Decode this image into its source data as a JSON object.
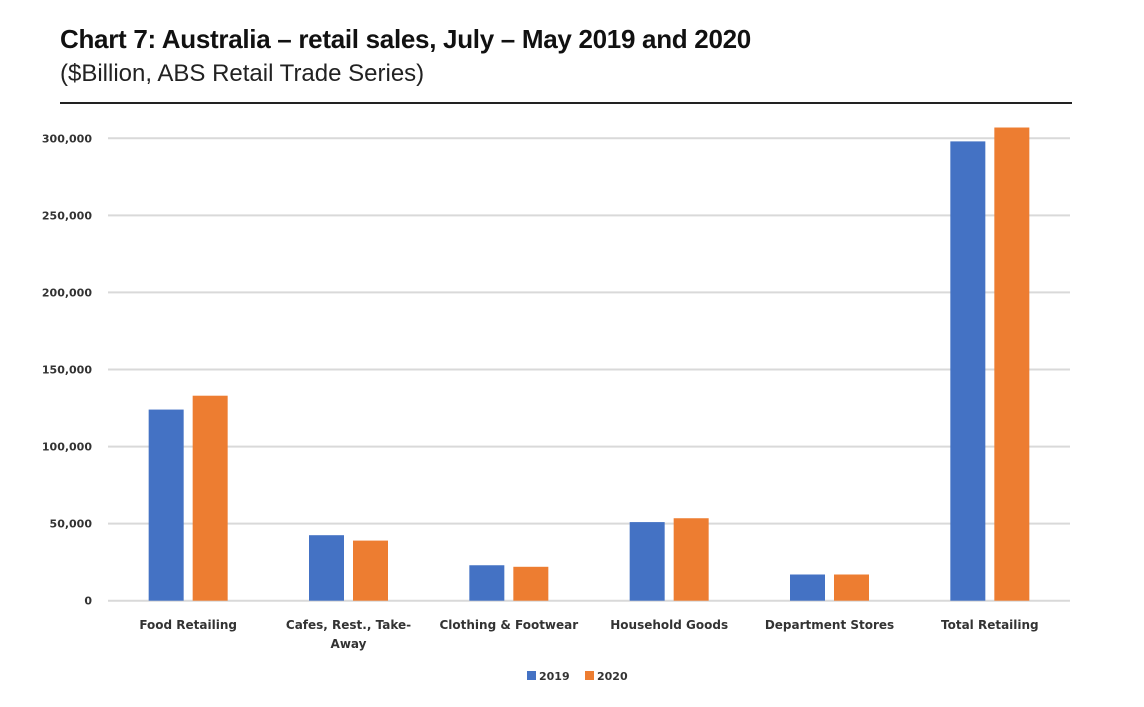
{
  "chart_data": {
    "type": "bar",
    "title": "Chart 7: Australia – retail sales, July – May 2019 and 2020",
    "subtitle": "($Billion, ABS Retail Trade Series)",
    "xlabel": "",
    "ylabel": "",
    "ylim": [
      0,
      300000
    ],
    "yticks": [
      0,
      50000,
      100000,
      150000,
      200000,
      250000,
      300000
    ],
    "ytick_labels": [
      "0",
      "50,000",
      "100,000",
      "150,000",
      "200,000",
      "250,000",
      "300,000"
    ],
    "grid": true,
    "legend_position": "bottom",
    "categories": [
      [
        "Food Retailing"
      ],
      [
        "Cafes, Rest., Take-",
        "Away"
      ],
      [
        "Clothing & Footwear"
      ],
      [
        "Household Goods"
      ],
      [
        "Department Stores"
      ],
      [
        "Total Retailing"
      ]
    ],
    "series": [
      {
        "name": "2019",
        "color": "#4472C4",
        "values": [
          124000,
          42500,
          23000,
          51000,
          17000,
          298000
        ]
      },
      {
        "name": "2020",
        "color": "#ED7D31",
        "values": [
          133000,
          39000,
          22000,
          53500,
          17000,
          307000
        ]
      }
    ]
  }
}
